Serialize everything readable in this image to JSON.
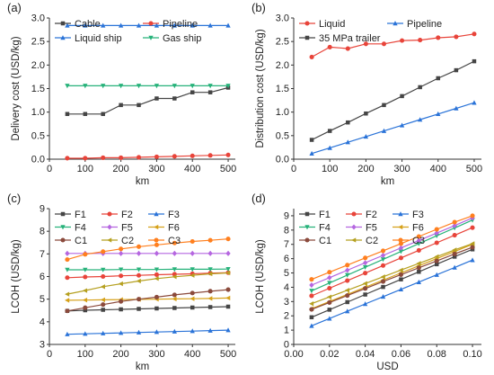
{
  "chart_data": [
    {
      "panel": "(a)",
      "type": "line",
      "xlabel": "km",
      "ylabel": "Delivery  cost (USD/kg)",
      "x": [
        50,
        100,
        150,
        200,
        250,
        300,
        350,
        400,
        450,
        500
      ],
      "xlim": [
        0,
        520
      ],
      "ylim": [
        0,
        3.0
      ],
      "xticks": [
        0,
        100,
        200,
        300,
        400,
        500
      ],
      "yticks": [
        0.0,
        0.5,
        1.0,
        1.5,
        2.0,
        2.5,
        3.0
      ],
      "ytick_format": 1,
      "legend_cols": 2,
      "series": [
        {
          "name": "Cable",
          "color": "#454545",
          "marker": "square",
          "values": [
            0.96,
            0.96,
            0.96,
            1.15,
            1.15,
            1.29,
            1.29,
            1.42,
            1.42,
            1.52
          ]
        },
        {
          "name": "Pipeline",
          "color": "#e8443a",
          "marker": "circle",
          "values": [
            0.02,
            0.02,
            0.03,
            0.03,
            0.04,
            0.05,
            0.06,
            0.07,
            0.08,
            0.09
          ]
        },
        {
          "name": "Liquid ship",
          "color": "#2a73d8",
          "marker": "triangle-up",
          "values": [
            2.84,
            2.84,
            2.84,
            2.84,
            2.84,
            2.84,
            2.84,
            2.84,
            2.84,
            2.84
          ]
        },
        {
          "name": "Gas ship",
          "color": "#27b27a",
          "marker": "triangle-down",
          "values": [
            1.56,
            1.56,
            1.56,
            1.56,
            1.56,
            1.56,
            1.56,
            1.56,
            1.56,
            1.56
          ]
        }
      ]
    },
    {
      "panel": "(b)",
      "type": "line",
      "xlabel": "km",
      "ylabel": "Distribution cost (USD/kg)",
      "x": [
        50,
        100,
        150,
        200,
        250,
        300,
        350,
        400,
        450,
        500
      ],
      "xlim": [
        0,
        520
      ],
      "ylim": [
        0,
        3.0
      ],
      "xticks": [
        0,
        100,
        200,
        300,
        400,
        500
      ],
      "yticks": [
        0.0,
        0.5,
        1.0,
        1.5,
        2.0,
        2.5,
        3.0
      ],
      "ytick_format": 1,
      "legend_cols": 2,
      "series": [
        {
          "name": "Liquid",
          "color": "#e8443a",
          "marker": "circle",
          "values": [
            2.17,
            2.38,
            2.35,
            2.45,
            2.45,
            2.52,
            2.53,
            2.58,
            2.6,
            2.66
          ]
        },
        {
          "name": "Pipeline",
          "color": "#2a73d8",
          "marker": "triangle-up",
          "values": [
            0.12,
            0.24,
            0.36,
            0.48,
            0.6,
            0.72,
            0.84,
            0.96,
            1.08,
            1.2
          ]
        },
        {
          "name": "35 MPa trailer",
          "color": "#454545",
          "marker": "square",
          "values": [
            0.41,
            0.6,
            0.78,
            0.97,
            1.15,
            1.34,
            1.53,
            1.72,
            1.89,
            2.08
          ]
        }
      ]
    },
    {
      "panel": "(c)",
      "type": "line",
      "xlabel": "km",
      "ylabel": "LCOH (USD/kg)",
      "x": [
        50,
        100,
        150,
        200,
        250,
        300,
        350,
        400,
        450,
        500
      ],
      "xlim": [
        0,
        520
      ],
      "ylim": [
        3,
        9
      ],
      "xticks": [
        0,
        100,
        200,
        300,
        400,
        500
      ],
      "yticks": [
        3,
        4,
        5,
        6,
        7,
        8,
        9
      ],
      "ytick_format": 0,
      "legend_cols": 3,
      "series": [
        {
          "name": "F1",
          "color": "#454545",
          "marker": "square",
          "values": [
            4.48,
            4.51,
            4.53,
            4.55,
            4.57,
            4.59,
            4.61,
            4.63,
            4.65,
            4.67
          ]
        },
        {
          "name": "F2",
          "color": "#e8443a",
          "marker": "circle",
          "values": [
            5.95,
            5.98,
            6.0,
            6.03,
            6.05,
            6.08,
            6.1,
            6.12,
            6.15,
            6.17
          ]
        },
        {
          "name": "F3",
          "color": "#2a73d8",
          "marker": "triangle-up",
          "values": [
            3.45,
            3.47,
            3.49,
            3.51,
            3.53,
            3.55,
            3.57,
            3.59,
            3.61,
            3.63
          ]
        },
        {
          "name": "F4",
          "color": "#27b27a",
          "marker": "triangle-down",
          "values": [
            6.3,
            6.3,
            6.3,
            6.31,
            6.31,
            6.31,
            6.32,
            6.32,
            6.32,
            6.33
          ]
        },
        {
          "name": "F5",
          "color": "#b566e0",
          "marker": "diamond",
          "values": [
            7.02,
            7.02,
            7.02,
            7.02,
            7.02,
            7.02,
            7.02,
            7.02,
            7.02,
            7.02
          ]
        },
        {
          "name": "F6",
          "color": "#d6a11a",
          "marker": "triangle-left",
          "values": [
            4.95,
            4.96,
            4.97,
            4.98,
            4.99,
            5.0,
            5.01,
            5.02,
            5.03,
            5.05
          ]
        },
        {
          "name": "C1",
          "color": "#8b4a3c",
          "marker": "circle",
          "values": [
            4.48,
            4.62,
            4.76,
            4.9,
            5.0,
            5.09,
            5.19,
            5.27,
            5.35,
            5.42
          ]
        },
        {
          "name": "C2",
          "color": "#b5a020",
          "marker": "triangle-left",
          "values": [
            5.22,
            5.38,
            5.55,
            5.68,
            5.8,
            5.91,
            5.99,
            6.05,
            6.12,
            6.16
          ]
        },
        {
          "name": "C3",
          "color": "#ff7f1e",
          "marker": "circle",
          "values": [
            6.75,
            6.98,
            7.1,
            7.22,
            7.32,
            7.4,
            7.48,
            7.55,
            7.6,
            7.66
          ]
        }
      ]
    },
    {
      "panel": "(d)",
      "type": "line",
      "xlabel": "USD",
      "ylabel": "LCOH (USD/kg)",
      "x": [
        0.01,
        0.02,
        0.03,
        0.04,
        0.05,
        0.06,
        0.07,
        0.08,
        0.09,
        0.1
      ],
      "xlim": [
        0.0,
        0.105
      ],
      "ylim": [
        0,
        9.5
      ],
      "xticks": [
        0.0,
        0.02,
        0.04,
        0.06,
        0.08,
        0.1
      ],
      "xtick_format": 2,
      "yticks": [
        0,
        1,
        2,
        3,
        4,
        5,
        6,
        7,
        8,
        9
      ],
      "ytick_format": 0,
      "legend_cols": 3,
      "series": [
        {
          "name": "F1",
          "color": "#454545",
          "marker": "square",
          "values": [
            1.9,
            2.43,
            2.96,
            3.49,
            4.02,
            4.55,
            5.08,
            5.61,
            6.14,
            6.65
          ]
        },
        {
          "name": "F2",
          "color": "#e8443a",
          "marker": "circle",
          "values": [
            3.4,
            3.93,
            4.46,
            4.99,
            5.52,
            6.05,
            6.58,
            7.11,
            7.64,
            8.17
          ]
        },
        {
          "name": "F3",
          "color": "#2a73d8",
          "marker": "triangle-up",
          "values": [
            1.3,
            1.81,
            2.32,
            2.83,
            3.34,
            3.85,
            4.36,
            4.87,
            5.38,
            5.9
          ]
        },
        {
          "name": "F4",
          "color": "#27b27a",
          "marker": "triangle-down",
          "values": [
            3.75,
            4.3,
            4.85,
            5.4,
            5.95,
            6.5,
            7.05,
            7.6,
            8.15,
            8.7
          ]
        },
        {
          "name": "F5",
          "color": "#b566e0",
          "marker": "diamond",
          "values": [
            4.15,
            4.67,
            5.19,
            5.71,
            6.23,
            6.75,
            7.27,
            7.79,
            8.31,
            8.85
          ]
        },
        {
          "name": "F6",
          "color": "#d6a11a",
          "marker": "triangle-left",
          "values": [
            2.5,
            3.0,
            3.5,
            4.0,
            4.5,
            5.0,
            5.5,
            6.0,
            6.5,
            7.0
          ]
        },
        {
          "name": "C1",
          "color": "#8b4a3c",
          "marker": "circle",
          "values": [
            2.45,
            2.93,
            3.42,
            3.91,
            4.4,
            4.88,
            5.36,
            5.84,
            6.33,
            6.8
          ]
        },
        {
          "name": "C2",
          "color": "#b5a020",
          "marker": "triangle-left",
          "values": [
            2.85,
            3.32,
            3.79,
            4.26,
            4.73,
            5.2,
            5.67,
            6.14,
            6.61,
            7.05
          ]
        },
        {
          "name": "C3",
          "color": "#ff7f1e",
          "marker": "circle",
          "values": [
            4.55,
            5.05,
            5.55,
            6.05,
            6.55,
            7.05,
            7.55,
            8.05,
            8.55,
            9.0
          ]
        }
      ]
    }
  ]
}
